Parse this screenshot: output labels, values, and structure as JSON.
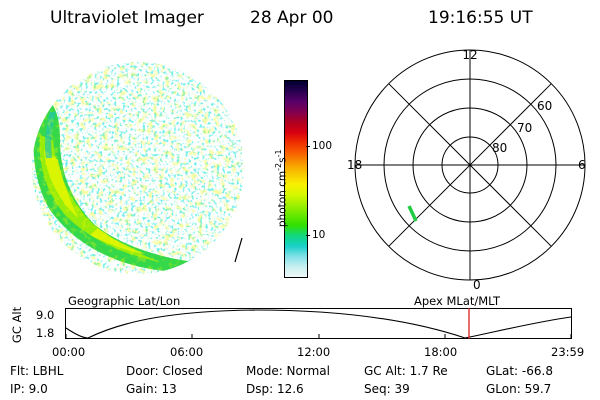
{
  "header": {
    "title": "Ultraviolet Imager",
    "date": "28 Apr 00",
    "time": "19:16:55 UT"
  },
  "colorbar": {
    "unit_label": "photon cm",
    "unit_sup1": "-2",
    "unit_mid": "s",
    "unit_sup2": "-1",
    "tick_100": "100",
    "tick_10": "10",
    "colors": [
      "#000030",
      "#280050",
      "#580068",
      "#800050",
      "#b00020",
      "#d80010",
      "#f03000",
      "#f86000",
      "#f89800",
      "#f8c800",
      "#f8f000",
      "#d8f800",
      "#a0f000",
      "#68e800",
      "#30e000",
      "#10d880",
      "#18d0c8",
      "#80e0e8",
      "#c8f0f0",
      "#f0f8f8"
    ]
  },
  "polar": {
    "label_12": "12",
    "label_18": "18",
    "label_6": "6",
    "label_0": "0",
    "label_60": "60",
    "label_70": "70",
    "label_80": "80",
    "track_color": "#22cc44"
  },
  "altitude_panel": {
    "left_title": "Geographic Lat/Lon",
    "right_title": "Apex MLat/MLT",
    "axis_label": "GC Alt",
    "y_top": "9.0",
    "y_bottom": "1.8",
    "x_ticks": [
      "00:00",
      "06:00",
      "12:00",
      "18:00",
      "23:59"
    ],
    "marker_color": "#e02020"
  },
  "info": {
    "flt": "Flt: LBHL",
    "ip": "IP:  9.0",
    "door": "Door: Closed",
    "gain": "Gain: 13",
    "mode": "Mode: Normal",
    "dsp": "Dsp:   12.6",
    "gcalt": "GC Alt: 1.7 Re",
    "seq": "Seq: 39",
    "glat": "GLat:  -66.8",
    "glon": "GLon:  59.7"
  }
}
